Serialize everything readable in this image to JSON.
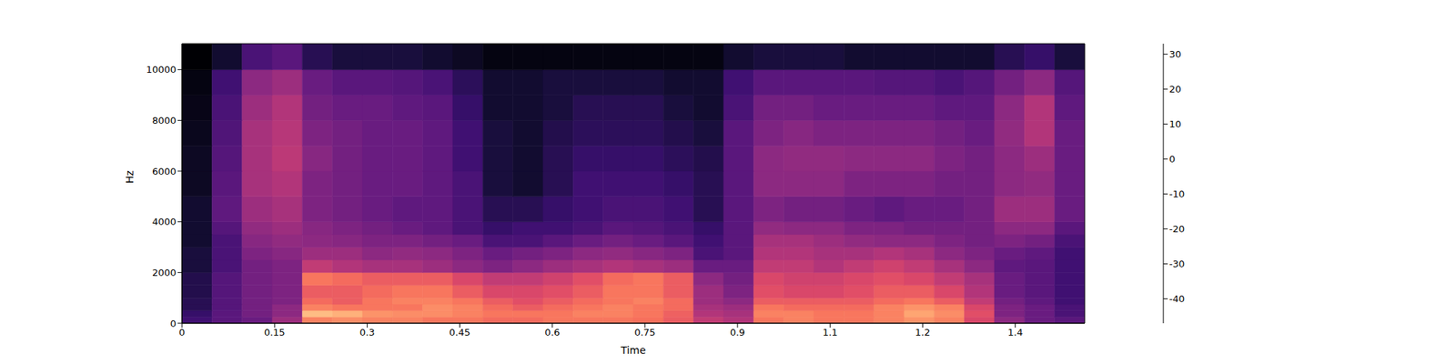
{
  "chart_data": {
    "type": "heatmap",
    "x_label": "Time",
    "y_label": "Hz",
    "xlim": [
      0,
      1.4625
    ],
    "xticks": [
      0,
      0.15,
      0.3,
      0.45,
      0.6,
      0.75,
      0.9,
      {
        "value": 1.05,
        "label": "1.1"
      },
      1.2,
      {
        "value": 1.35,
        "label": "1.4"
      }
    ],
    "ylim": [
      0,
      11025
    ],
    "yticks": [
      0,
      2000,
      4000,
      6000,
      8000,
      10000
    ],
    "x_edges": [
      0,
      0.04875,
      0.0975,
      0.14625,
      0.195,
      0.24375,
      0.2925,
      0.34125,
      0.39,
      0.43875,
      0.4875,
      0.53625,
      0.585,
      0.63375,
      0.6825,
      0.73125,
      0.78,
      0.82875,
      0.8775,
      0.92625,
      0.975,
      1.02375,
      1.0725,
      1.12125,
      1.17,
      1.21875,
      1.2675,
      1.31625,
      1.365,
      1.41375,
      1.4625
    ],
    "y_edges": [
      0,
      250,
      500,
      750,
      1000,
      1500,
      2000,
      2500,
      3000,
      3500,
      4000,
      5000,
      6000,
      7000,
      8000,
      9000,
      10000,
      11025
    ],
    "cells": [
      [
        -30,
        -25,
        -22,
        -12,
        12,
        14,
        12,
        12,
        10,
        10,
        8,
        8,
        10,
        10,
        10,
        9,
        5,
        -5,
        -8,
        10,
        12,
        10,
        10,
        12,
        15,
        12,
        0,
        -15,
        -22,
        -25
      ],
      [
        -32,
        -25,
        -20,
        -15,
        22,
        20,
        15,
        14,
        14,
        12,
        10,
        10,
        10,
        12,
        12,
        10,
        6,
        -8,
        -10,
        12,
        12,
        10,
        10,
        12,
        18,
        14,
        2,
        -18,
        -22,
        -28
      ],
      [
        -35,
        -26,
        -20,
        -15,
        12,
        10,
        10,
        10,
        14,
        12,
        8,
        5,
        8,
        10,
        12,
        10,
        8,
        -10,
        -12,
        10,
        8,
        8,
        8,
        12,
        15,
        12,
        0,
        -18,
        -22,
        -28
      ],
      [
        -35,
        -26,
        -20,
        -18,
        8,
        5,
        10,
        12,
        12,
        10,
        5,
        2,
        5,
        8,
        10,
        12,
        8,
        -12,
        -15,
        5,
        5,
        5,
        5,
        8,
        10,
        5,
        -5,
        -20,
        -24,
        -30
      ],
      [
        -36,
        -26,
        -20,
        -18,
        5,
        5,
        8,
        10,
        10,
        5,
        0,
        0,
        2,
        5,
        10,
        10,
        5,
        -12,
        -18,
        2,
        0,
        0,
        2,
        5,
        5,
        0,
        -8,
        -22,
        -25,
        -30
      ],
      [
        -36,
        -26,
        -20,
        -18,
        10,
        8,
        5,
        5,
        5,
        0,
        -5,
        -5,
        -2,
        2,
        8,
        10,
        5,
        -15,
        -20,
        0,
        -2,
        -2,
        0,
        2,
        0,
        -5,
        -10,
        -22,
        -25,
        -30
      ],
      [
        -38,
        -28,
        -20,
        -18,
        -5,
        -8,
        -10,
        -10,
        -12,
        -15,
        -18,
        -15,
        -12,
        -10,
        -8,
        -10,
        -12,
        -22,
        -22,
        -5,
        -5,
        -8,
        -5,
        -2,
        -5,
        -10,
        -15,
        -24,
        -25,
        -30
      ],
      [
        -38,
        -28,
        -18,
        -16,
        -12,
        -12,
        -15,
        -14,
        -15,
        -18,
        -22,
        -20,
        -18,
        -15,
        -14,
        -16,
        -18,
        -28,
        -25,
        -8,
        -8,
        -10,
        -10,
        -8,
        -10,
        -15,
        -18,
        -22,
        -24,
        -30
      ],
      [
        -40,
        -28,
        -16,
        -14,
        -15,
        -16,
        -18,
        -18,
        -20,
        -22,
        -28,
        -28,
        -25,
        -22,
        -20,
        -22,
        -25,
        -30,
        -25,
        -10,
        -10,
        -12,
        -14,
        -15,
        -15,
        -18,
        -20,
        -18,
        -20,
        -28
      ],
      [
        -40,
        -26,
        -14,
        -12,
        -16,
        -18,
        -20,
        -22,
        -24,
        -28,
        -32,
        -30,
        -30,
        -28,
        -25,
        -26,
        -28,
        -32,
        -25,
        -14,
        -15,
        -15,
        -18,
        -18,
        -20,
        -20,
        -20,
        -15,
        -15,
        -25
      ],
      [
        -40,
        -24,
        -12,
        -10,
        -18,
        -20,
        -22,
        -24,
        -24,
        -28,
        -35,
        -35,
        -32,
        -30,
        -28,
        -28,
        -30,
        -35,
        -25,
        -18,
        -20,
        -20,
        -22,
        -24,
        -22,
        -22,
        -20,
        -12,
        -12,
        -22
      ],
      [
        -42,
        -25,
        -10,
        -8,
        -18,
        -20,
        -22,
        -22,
        -24,
        -28,
        -38,
        -40,
        -35,
        -30,
        -30,
        -30,
        -32,
        -35,
        -25,
        -15,
        -15,
        -15,
        -18,
        -18,
        -18,
        -20,
        -20,
        -15,
        -14,
        -22
      ],
      [
        -42,
        -26,
        -10,
        -6,
        -16,
        -20,
        -22,
        -22,
        -24,
        -30,
        -38,
        -40,
        -35,
        -32,
        -32,
        -32,
        -34,
        -36,
        -25,
        -15,
        -14,
        -14,
        -15,
        -15,
        -15,
        -18,
        -20,
        -15,
        -12,
        -22
      ],
      [
        -43,
        -27,
        -10,
        -7,
        -18,
        -20,
        -22,
        -22,
        -24,
        -30,
        -38,
        -40,
        -36,
        -34,
        -34,
        -34,
        -36,
        -38,
        -25,
        -18,
        -16,
        -18,
        -18,
        -18,
        -18,
        -20,
        -22,
        -14,
        -8,
        -22
      ],
      [
        -44,
        -28,
        -12,
        -8,
        -20,
        -22,
        -22,
        -24,
        -25,
        -32,
        -40,
        -40,
        -38,
        -35,
        -35,
        -35,
        -38,
        -40,
        -28,
        -20,
        -20,
        -22,
        -22,
        -22,
        -22,
        -24,
        -24,
        -15,
        -8,
        -24
      ],
      [
        -45,
        -30,
        -15,
        -12,
        -22,
        -25,
        -25,
        -26,
        -28,
        -34,
        -40,
        -40,
        -38,
        -38,
        -38,
        -38,
        -40,
        -40,
        -30,
        -25,
        -25,
        -25,
        -25,
        -26,
        -26,
        -28,
        -26,
        -20,
        -15,
        -26
      ],
      [
        -47,
        -40,
        -28,
        -25,
        -35,
        -38,
        -38,
        -38,
        -40,
        -42,
        -45,
        -45,
        -45,
        -45,
        -45,
        -45,
        -45,
        -45,
        -40,
        -38,
        -38,
        -38,
        -40,
        -40,
        -40,
        -40,
        -40,
        -35,
        -32,
        -38
      ]
    ],
    "colorbar": {
      "range": [
        -47,
        33
      ],
      "ticks": [
        -40,
        -30,
        -20,
        -10,
        0,
        10,
        20,
        30
      ]
    }
  }
}
